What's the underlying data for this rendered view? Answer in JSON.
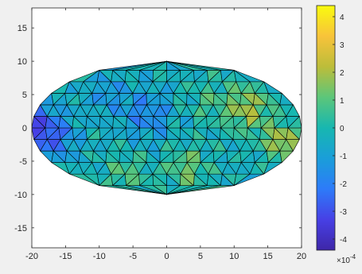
{
  "chart_data": {
    "type": "heatmap",
    "plot": "triangular-mesh surface on elliptical domain",
    "title": "",
    "xlabel": "",
    "ylabel": "",
    "xlim": [
      -20,
      20
    ],
    "ylim": [
      -18,
      18
    ],
    "x_ticks": [
      -20,
      -15,
      -10,
      -5,
      0,
      5,
      10,
      15,
      20
    ],
    "y_ticks": [
      -15,
      -10,
      -5,
      0,
      5,
      10,
      15
    ],
    "domain": {
      "shape": "ellipse",
      "center": [
        0,
        0
      ],
      "semi_axis_x": 20,
      "semi_axis_y": 10
    },
    "mesh": {
      "element": "triangle",
      "approx_spacing": 2.0,
      "edge_color": "#000000"
    },
    "field": {
      "scale_exponent": -4,
      "range_scaled": [
        -4.4,
        4.4
      ],
      "description_pattern": "values near 0 in interior; negative (blue) at far left edge and around (-2,2); positive (yellow) along boundary near (12,3), (17,-2), (-6,-6), (3,-6)"
    },
    "colorbar": {
      "colormap": "parula",
      "ticks": [
        -4,
        -3,
        -2,
        -1,
        0,
        1,
        2,
        3,
        4
      ],
      "tick_labels": [
        "-4",
        "-3",
        "-2",
        "-1",
        "0",
        "1",
        "2",
        "3",
        "4"
      ],
      "exponent_label_base": "×10",
      "exponent_label_power": "-4"
    },
    "colors": {
      "figure_bg": "#f0f0f0",
      "axes_bg": "#ffffff",
      "axis_line": "#262626"
    }
  }
}
